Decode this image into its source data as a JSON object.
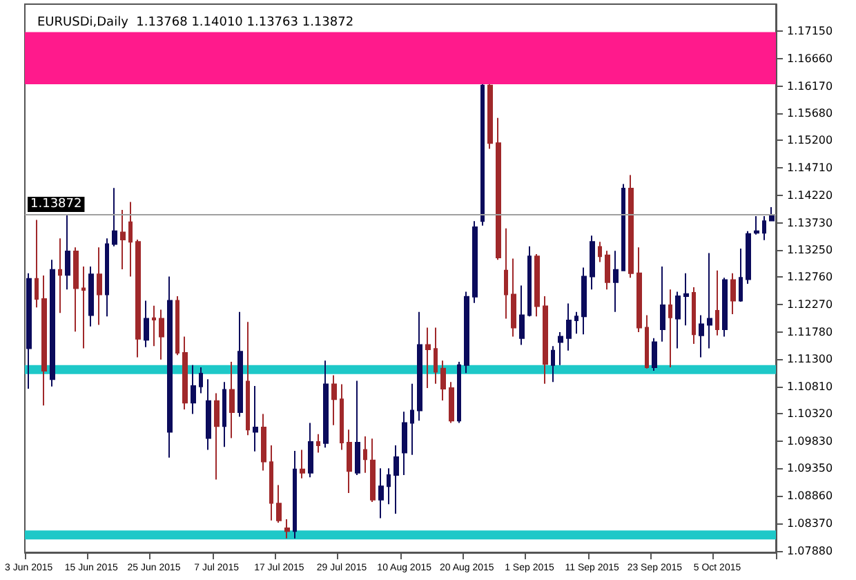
{
  "chart_data": {
    "type": "candlestick",
    "title": "EURUSDi,Daily  1.13768 1.14010 1.13763 1.13872",
    "categories": [
      "3 Jun 2015",
      null,
      null,
      null,
      null,
      null,
      null,
      null,
      "15 Jun 2015",
      null,
      null,
      null,
      null,
      null,
      null,
      null,
      "25 Jun 2015",
      null,
      null,
      null,
      null,
      null,
      null,
      null,
      "7 Jul 2015",
      null,
      null,
      null,
      null,
      null,
      null,
      null,
      "17 Jul 2015",
      null,
      null,
      null,
      null,
      null,
      null,
      null,
      "29 Jul 2015",
      null,
      null,
      null,
      null,
      null,
      null,
      null,
      "10 Aug 2015",
      null,
      null,
      null,
      null,
      null,
      null,
      null,
      "20 Aug 2015",
      null,
      null,
      null,
      null,
      null,
      null,
      null,
      "1 Sep 2015",
      null,
      null,
      null,
      null,
      null,
      null,
      null,
      "11 Sep 2015",
      null,
      null,
      null,
      null,
      null,
      null,
      null,
      "23 Sep 2015",
      null,
      null,
      null,
      null,
      null,
      null,
      null,
      "5 Oct 2015",
      null,
      null,
      null,
      null,
      null,
      null,
      null
    ],
    "ohlc": [
      [
        1.1149,
        1.1283,
        1.1077,
        1.1273
      ],
      [
        1.1273,
        1.1378,
        1.1222,
        1.1237
      ],
      [
        1.1237,
        1.1279,
        1.1047,
        1.1109
      ],
      [
        1.1094,
        1.1307,
        1.1081,
        1.1289
      ],
      [
        1.1289,
        1.1345,
        1.1212,
        1.128
      ],
      [
        1.128,
        1.1386,
        1.1254,
        1.1322
      ],
      [
        1.1322,
        1.1329,
        1.1179,
        1.1256
      ],
      [
        1.1256,
        1.1295,
        1.1149,
        1.1253
      ],
      [
        1.1208,
        1.1295,
        1.1188,
        1.1281
      ],
      [
        1.1281,
        1.1329,
        1.1191,
        1.1245
      ],
      [
        1.1245,
        1.1345,
        1.1206,
        1.1335
      ],
      [
        1.1335,
        1.1435,
        1.1331,
        1.1358
      ],
      [
        1.1356,
        1.1396,
        1.129,
        1.1343
      ],
      [
        1.1374,
        1.141,
        1.1277,
        1.1339
      ],
      [
        1.1339,
        1.1343,
        1.1133,
        1.1166
      ],
      [
        1.1164,
        1.1234,
        1.1151,
        1.1202
      ],
      [
        1.1203,
        1.1225,
        1.1153,
        1.12
      ],
      [
        1.1202,
        1.1218,
        1.1129,
        1.117
      ],
      [
        1.1,
        1.1277,
        1.0954,
        1.1234
      ],
      [
        1.1234,
        1.1242,
        1.1137,
        1.1141
      ],
      [
        1.1141,
        1.117,
        1.104,
        1.1052
      ],
      [
        1.1052,
        1.1119,
        1.1032,
        1.1082
      ],
      [
        1.1081,
        1.1115,
        1.1069,
        1.1104
      ],
      [
        1.0989,
        1.1094,
        1.0968,
        1.1055
      ],
      [
        1.1055,
        1.1069,
        1.0915,
        1.101
      ],
      [
        1.101,
        1.1089,
        1.0973,
        1.1075
      ],
      [
        1.1075,
        1.1125,
        1.0989,
        1.1035
      ],
      [
        1.1035,
        1.1214,
        1.1027,
        1.1143
      ],
      [
        1.109,
        1.1196,
        1.0994,
        1.1004
      ],
      [
        1.1,
        1.1082,
        1.0965,
        1.1008
      ],
      [
        1.1008,
        1.1032,
        1.0931,
        1.0947
      ],
      [
        1.0946,
        1.0976,
        1.0842,
        1.0873
      ],
      [
        1.0872,
        1.0905,
        1.0838,
        1.0842
      ],
      [
        1.0828,
        1.0844,
        1.081,
        1.0823
      ],
      [
        1.0823,
        1.0966,
        1.081,
        1.0933
      ],
      [
        1.0933,
        1.0968,
        1.0917,
        1.0927
      ],
      [
        1.0927,
        1.1016,
        1.0919,
        1.0982
      ],
      [
        1.0982,
        1.0996,
        1.0963,
        1.0976
      ],
      [
        1.098,
        1.1127,
        1.0972,
        1.1085
      ],
      [
        1.1085,
        1.1101,
        1.1012,
        1.1058
      ],
      [
        1.1058,
        1.1085,
        1.0968,
        1.0981
      ],
      [
        1.0981,
        1.1004,
        1.0891,
        1.093
      ],
      [
        1.0927,
        1.1091,
        1.0923,
        1.0981
      ],
      [
        1.0968,
        1.0992,
        1.0927,
        1.0951
      ],
      [
        1.0949,
        1.0988,
        1.0875,
        1.0879
      ],
      [
        1.0879,
        1.0935,
        1.0846,
        1.0903
      ],
      [
        1.0903,
        1.0935,
        1.0871,
        1.0923
      ],
      [
        1.0923,
        1.0976,
        1.0854,
        1.0955
      ],
      [
        1.0963,
        1.1036,
        1.0923,
        1.1016
      ],
      [
        1.1016,
        1.1086,
        1.0959,
        1.1038
      ],
      [
        1.1038,
        1.1214,
        1.102,
        1.1155
      ],
      [
        1.1155,
        1.1186,
        1.1078,
        1.1147
      ],
      [
        1.1148,
        1.1186,
        1.1086,
        1.1107
      ],
      [
        1.1113,
        1.1127,
        1.1056,
        1.1077
      ],
      [
        1.1078,
        1.1089,
        1.1016,
        1.102
      ],
      [
        1.102,
        1.1125,
        1.1016,
        1.1119
      ],
      [
        1.1119,
        1.125,
        1.1105,
        1.1241
      ],
      [
        1.1241,
        1.1376,
        1.123,
        1.1365
      ],
      [
        1.1376,
        1.162,
        1.1368,
        1.1618
      ],
      [
        1.1618,
        1.162,
        1.1505,
        1.1515
      ],
      [
        1.1515,
        1.156,
        1.1307,
        1.1311
      ],
      [
        1.1288,
        1.1363,
        1.1202,
        1.1245
      ],
      [
        1.1245,
        1.1309,
        1.117,
        1.1186
      ],
      [
        1.1167,
        1.1261,
        1.1155,
        1.1208
      ],
      [
        1.1208,
        1.1331,
        1.1206,
        1.1313
      ],
      [
        1.1313,
        1.1317,
        1.1206,
        1.1224
      ],
      [
        1.1224,
        1.1242,
        1.1086,
        1.1121
      ],
      [
        1.1119,
        1.1153,
        1.1089,
        1.1145
      ],
      [
        1.116,
        1.1178,
        1.1119,
        1.117
      ],
      [
        1.1167,
        1.1229,
        1.1145,
        1.1199
      ],
      [
        1.1199,
        1.1214,
        1.1175,
        1.1206
      ],
      [
        1.1206,
        1.1293,
        1.1174,
        1.1277
      ],
      [
        1.1277,
        1.135,
        1.1254,
        1.1339
      ],
      [
        1.133,
        1.1339,
        1.1303,
        1.1313
      ],
      [
        1.1315,
        1.1323,
        1.1254,
        1.1267
      ],
      [
        1.1267,
        1.1323,
        1.1214,
        1.1289
      ],
      [
        1.1288,
        1.1442,
        1.1287,
        1.1434
      ],
      [
        1.1434,
        1.1458,
        1.1275,
        1.1283
      ],
      [
        1.1283,
        1.1329,
        1.1178,
        1.1186
      ],
      [
        1.1186,
        1.1208,
        1.1113,
        1.1115
      ],
      [
        1.1115,
        1.1167,
        1.1109,
        1.116
      ],
      [
        1.1183,
        1.1295,
        1.1161,
        1.1226
      ],
      [
        1.1226,
        1.1254,
        1.1115,
        1.1204
      ],
      [
        1.1202,
        1.125,
        1.1149,
        1.1242
      ],
      [
        1.1242,
        1.1283,
        1.119,
        1.1246
      ],
      [
        1.1248,
        1.1258,
        1.1157,
        1.1174
      ],
      [
        1.1172,
        1.1208,
        1.1133,
        1.1192
      ],
      [
        1.1191,
        1.1319,
        1.1149,
        1.1202
      ],
      [
        1.1216,
        1.1288,
        1.1172,
        1.1183
      ],
      [
        1.1183,
        1.1275,
        1.117,
        1.1271
      ],
      [
        1.1271,
        1.1283,
        1.121,
        1.1234
      ],
      [
        1.1234,
        1.1327,
        1.1232,
        1.1275
      ],
      [
        1.1272,
        1.1358,
        1.1264,
        1.1353
      ],
      [
        1.1355,
        1.1385,
        1.1352,
        1.1358
      ],
      [
        1.1355,
        1.1385,
        1.1342,
        1.1376
      ],
      [
        1.13768,
        1.1401,
        1.13763,
        1.13872
      ]
    ],
    "colors": [
      "#0b0b5c",
      "#a0282a",
      "#a0282a",
      "#0b0b5c",
      "#a0282a",
      "#0b0b5c",
      "#a0282a",
      "#a0282a",
      "#0b0b5c",
      "#a0282a",
      "#0b0b5c",
      "#0b0b5c",
      "#a0282a",
      "#a0282a",
      "#a0282a",
      "#0b0b5c",
      "#a0282a",
      "#a0282a",
      "#0b0b5c",
      "#a0282a",
      "#a0282a",
      "#0b0b5c",
      "#0b0b5c",
      "#0b0b5c",
      "#a0282a",
      "#0b0b5c",
      "#a0282a",
      "#0b0b5c",
      "#a0282a",
      "#0b0b5c",
      "#a0282a",
      "#a0282a",
      "#a0282a",
      "#a0282a",
      "#0b0b5c",
      "#a0282a",
      "#0b0b5c",
      "#a0282a",
      "#0b0b5c",
      "#a0282a",
      "#a0282a",
      "#a0282a",
      "#0b0b5c",
      "#a0282a",
      "#a0282a",
      "#0b0b5c",
      "#0b0b5c",
      "#0b0b5c",
      "#0b0b5c",
      "#0b0b5c",
      "#0b0b5c",
      "#a0282a",
      "#a0282a",
      "#a0282a",
      "#a0282a",
      "#0b0b5c",
      "#0b0b5c",
      "#0b0b5c",
      "#0b0b5c",
      "#a0282a",
      "#a0282a",
      "#a0282a",
      "#a0282a",
      "#0b0b5c",
      "#0b0b5c",
      "#a0282a",
      "#a0282a",
      "#0b0b5c",
      "#0b0b5c",
      "#0b0b5c",
      "#0b0b5c",
      "#0b0b5c",
      "#0b0b5c",
      "#a0282a",
      "#a0282a",
      "#0b0b5c",
      "#0b0b5c",
      "#a0282a",
      "#a0282a",
      "#a0282a",
      "#0b0b5c",
      "#0b0b5c",
      "#a0282a",
      "#0b0b5c",
      "#0b0b5c",
      "#a0282a",
      "#0b0b5c",
      "#0b0b5c",
      "#a0282a",
      "#0b0b5c",
      "#a0282a",
      "#0b0b5c",
      "#0b0b5c",
      "#0b0b5c",
      "#0b0b5c",
      "#0b0b5c"
    ],
    "ylim": [
      1.0785,
      1.1763
    ],
    "yticks": [
      {
        "value": 1.1715,
        "label": "1.17150"
      },
      {
        "value": 1.1666,
        "label": "1.16660"
      },
      {
        "value": 1.1617,
        "label": "1.16170"
      },
      {
        "value": 1.1568,
        "label": "1.15680"
      },
      {
        "value": 1.152,
        "label": "1.15200"
      },
      {
        "value": 1.1471,
        "label": "1.14710"
      },
      {
        "value": 1.1422,
        "label": "1.14220"
      },
      {
        "value": 1.1373,
        "label": "1.13730"
      },
      {
        "value": 1.1325,
        "label": "1.13250"
      },
      {
        "value": 1.1276,
        "label": "1.12760"
      },
      {
        "value": 1.1227,
        "label": "1.12270"
      },
      {
        "value": 1.1178,
        "label": "1.11780"
      },
      {
        "value": 1.113,
        "label": "1.11300"
      },
      {
        "value": 1.1081,
        "label": "1.10810"
      },
      {
        "value": 1.1032,
        "label": "1.10320"
      },
      {
        "value": 1.0983,
        "label": "1.09830"
      },
      {
        "value": 1.0935,
        "label": "1.09350"
      },
      {
        "value": 1.0886,
        "label": "1.08860"
      },
      {
        "value": 1.0837,
        "label": "1.08370"
      },
      {
        "value": 1.0788,
        "label": "1.07880"
      }
    ],
    "ref_lines": [
      {
        "axis": "y",
        "value": 1.13872,
        "label": "1.13872",
        "color": "#a0a0a0"
      }
    ],
    "bands": [
      {
        "axis": "y",
        "from": 1.162,
        "to": 1.1713,
        "color": "#ff1a8c"
      },
      {
        "axis": "y",
        "from": 1.1103,
        "to": 1.1119,
        "color": "#1ec8c8"
      },
      {
        "axis": "y",
        "from": 1.0808,
        "to": 1.0824,
        "color": "#1ec8c8"
      }
    ],
    "grid": false
  }
}
